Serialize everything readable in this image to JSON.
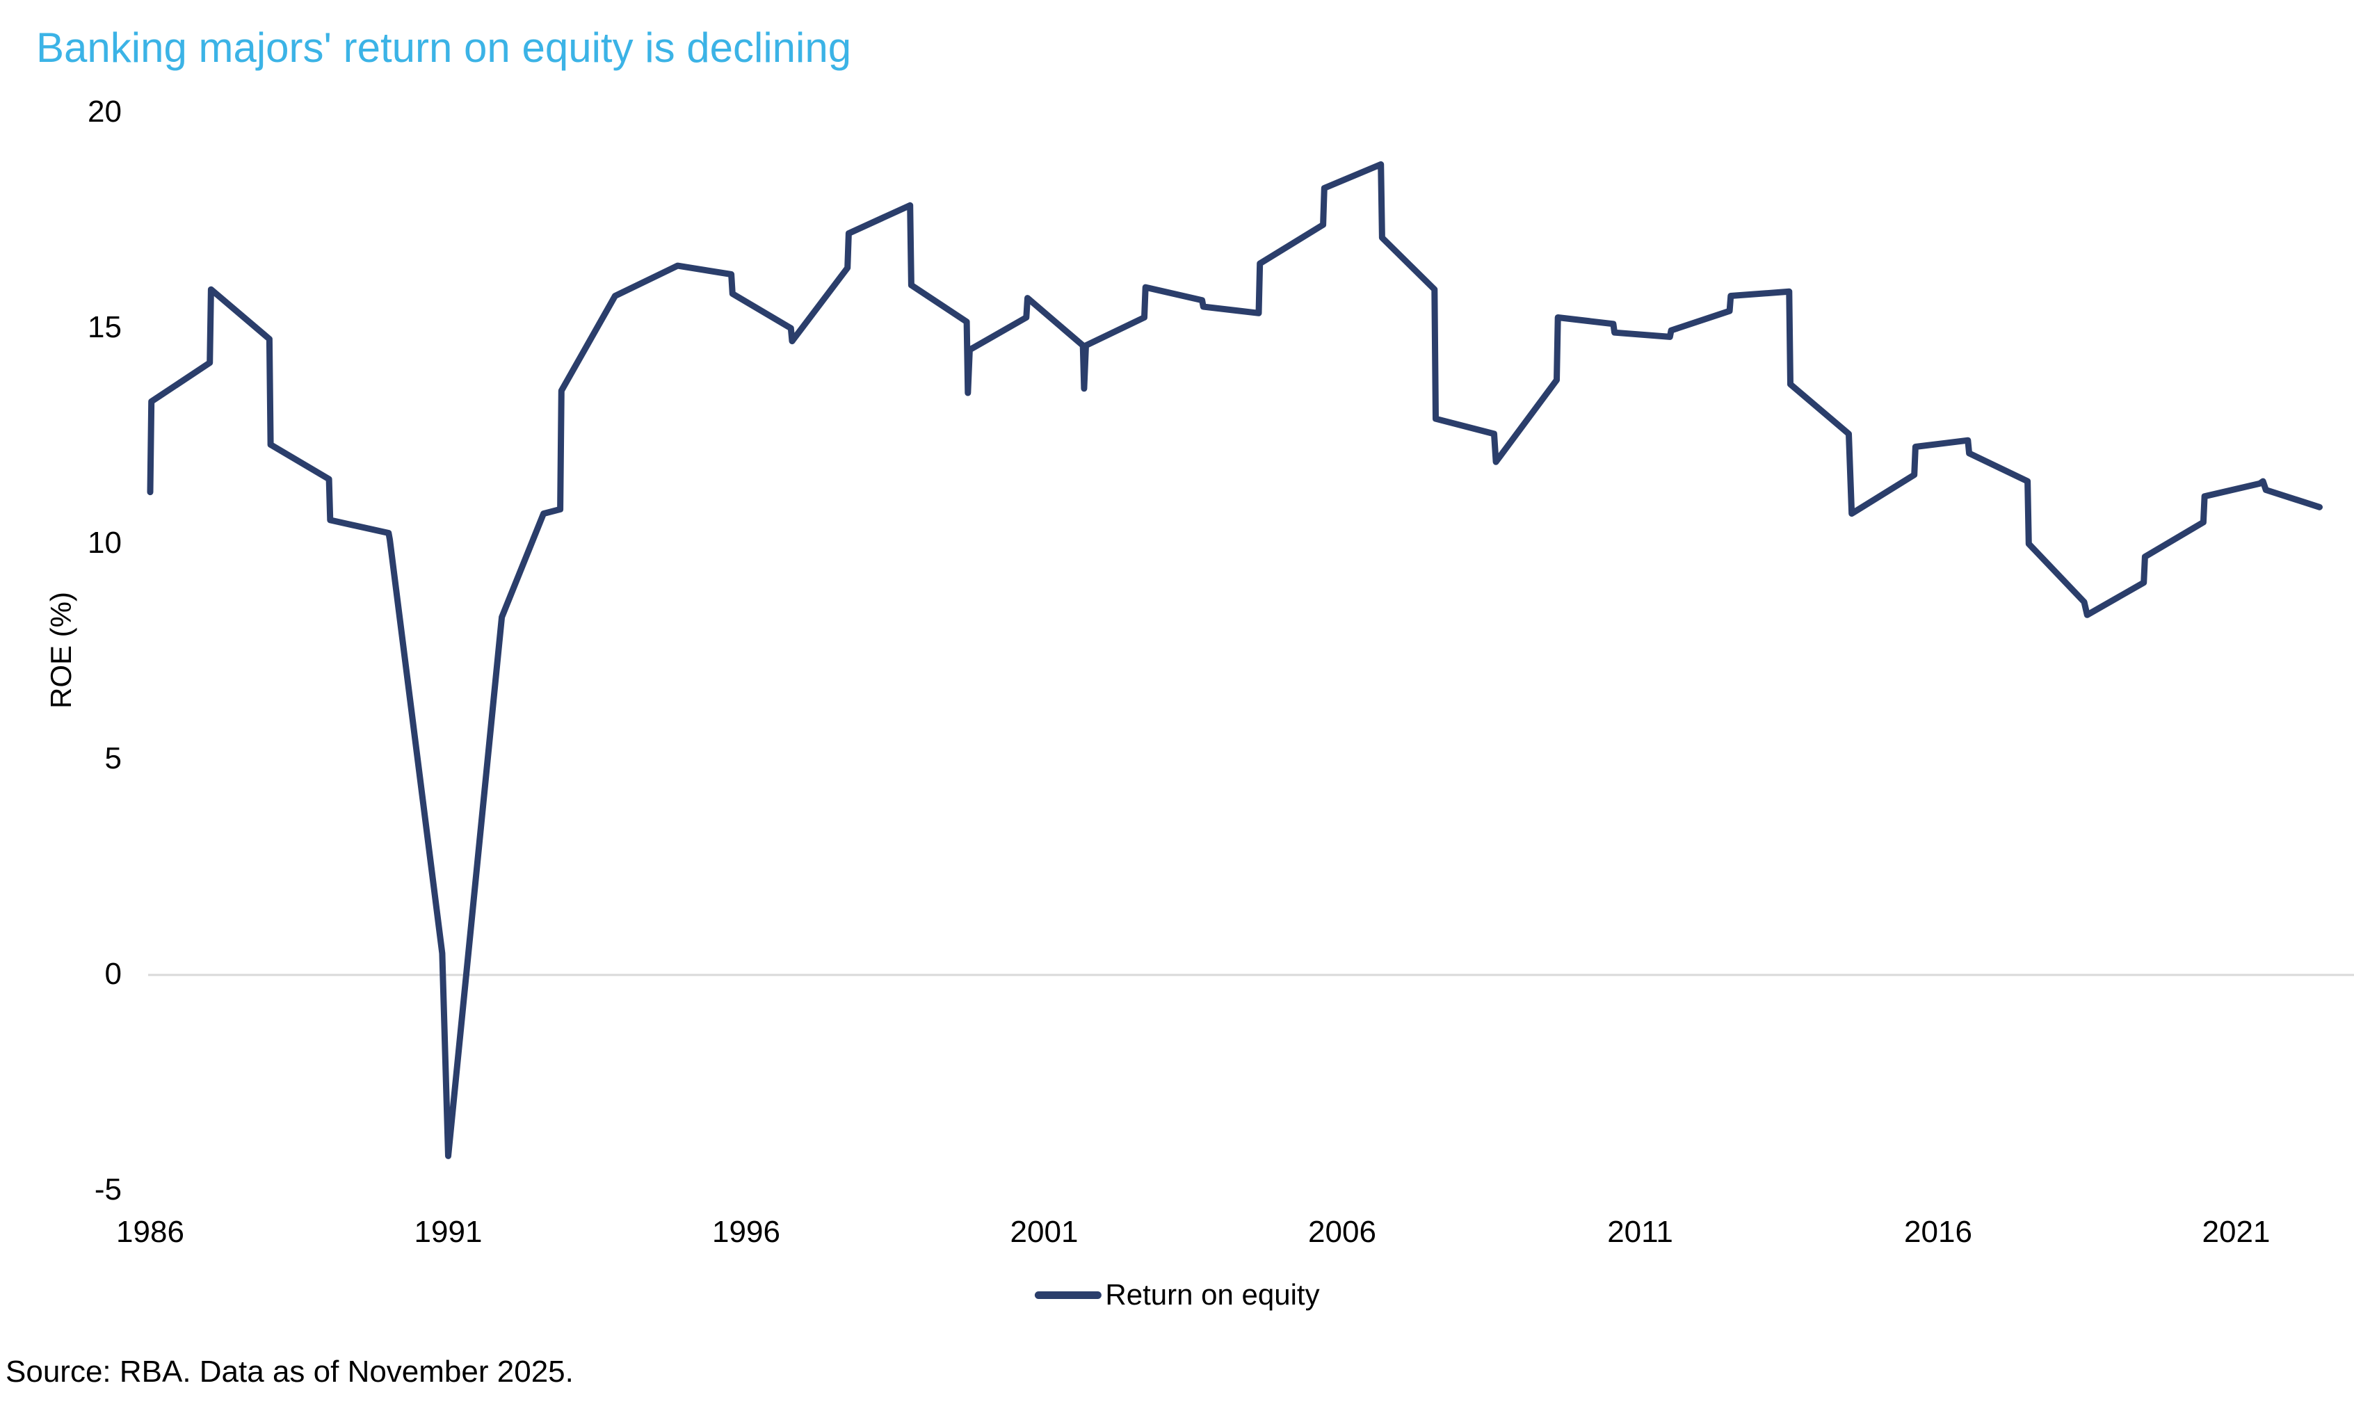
{
  "title": {
    "text": "Banking majors' return on equity is declining"
  },
  "colors": {
    "title_accent": "#3bb3e6",
    "line": "#2b3e6b",
    "zero_gridline": "#d9d9d9",
    "text": "#000000",
    "background": "#ffffff"
  },
  "legend": {
    "label": "Return on equity"
  },
  "source": {
    "text": "Source: RBA. Data as of November 2025."
  },
  "chart_data": {
    "type": "line",
    "title": "Banking majors' return on equity is declining",
    "xlabel": "",
    "ylabel": "ROE (%)",
    "x_ticks": [
      1986,
      1991,
      1996,
      2001,
      2006,
      2011,
      2016,
      2021
    ],
    "y_ticks": [
      20,
      15,
      10,
      5,
      0,
      -5
    ],
    "xlim": [
      1985.75,
      2023.0
    ],
    "ylim": [
      -5,
      20
    ],
    "grid": "horizontal line at y=0 only",
    "legend_position": "bottom-center",
    "series": [
      {
        "name": "Return on equity",
        "points": [
          [
            1986.0,
            11.2
          ],
          [
            1986.02,
            13.3
          ],
          [
            1987.0,
            14.2
          ],
          [
            1987.02,
            15.9
          ],
          [
            1988.0,
            14.75
          ],
          [
            1988.02,
            12.3
          ],
          [
            1989.0,
            11.5
          ],
          [
            1989.02,
            10.55
          ],
          [
            1990.0,
            10.25
          ],
          [
            1990.02,
            10.1
          ],
          [
            1990.9,
            0.5
          ],
          [
            1991.0,
            -4.2
          ],
          [
            1991.9,
            8.3
          ],
          [
            1992.6,
            10.7
          ],
          [
            1992.88,
            10.8
          ],
          [
            1992.9,
            13.55
          ],
          [
            1993.8,
            15.75
          ],
          [
            1994.85,
            16.45
          ],
          [
            1995.75,
            16.25
          ],
          [
            1995.77,
            15.8
          ],
          [
            1996.75,
            15.0
          ],
          [
            1996.77,
            14.7
          ],
          [
            1997.7,
            16.4
          ],
          [
            1997.72,
            17.2
          ],
          [
            1998.75,
            17.85
          ],
          [
            1998.77,
            16.0
          ],
          [
            1999.7,
            15.15
          ],
          [
            1999.72,
            13.5
          ],
          [
            1999.75,
            14.5
          ],
          [
            2000.7,
            15.25
          ],
          [
            2000.72,
            15.7
          ],
          [
            2001.65,
            14.6
          ],
          [
            2001.67,
            13.6
          ],
          [
            2001.7,
            14.6
          ],
          [
            2002.68,
            15.25
          ],
          [
            2002.7,
            15.95
          ],
          [
            2003.65,
            15.65
          ],
          [
            2003.67,
            15.5
          ],
          [
            2004.6,
            15.35
          ],
          [
            2004.62,
            16.5
          ],
          [
            2005.68,
            17.4
          ],
          [
            2005.7,
            18.25
          ],
          [
            2006.65,
            18.8
          ],
          [
            2006.67,
            17.1
          ],
          [
            2007.55,
            15.9
          ],
          [
            2007.57,
            12.9
          ],
          [
            2008.55,
            12.55
          ],
          [
            2008.58,
            11.9
          ],
          [
            2009.6,
            13.8
          ],
          [
            2009.62,
            15.25
          ],
          [
            2010.55,
            15.1
          ],
          [
            2010.57,
            14.9
          ],
          [
            2011.5,
            14.8
          ],
          [
            2011.52,
            14.95
          ],
          [
            2012.5,
            15.4
          ],
          [
            2012.52,
            15.75
          ],
          [
            2013.5,
            15.85
          ],
          [
            2013.52,
            13.7
          ],
          [
            2014.5,
            12.55
          ],
          [
            2014.55,
            10.7
          ],
          [
            2015.6,
            11.6
          ],
          [
            2015.62,
            12.25
          ],
          [
            2016.5,
            12.4
          ],
          [
            2016.52,
            12.1
          ],
          [
            2017.5,
            11.45
          ],
          [
            2017.52,
            10.0
          ],
          [
            2018.45,
            8.65
          ],
          [
            2018.5,
            8.35
          ],
          [
            2019.45,
            9.1
          ],
          [
            2019.47,
            9.7
          ],
          [
            2020.45,
            10.5
          ],
          [
            2020.47,
            11.1
          ],
          [
            2021.4,
            11.4
          ],
          [
            2021.45,
            11.45
          ],
          [
            2021.5,
            11.25
          ],
          [
            2022.4,
            10.85
          ]
        ]
      }
    ]
  }
}
